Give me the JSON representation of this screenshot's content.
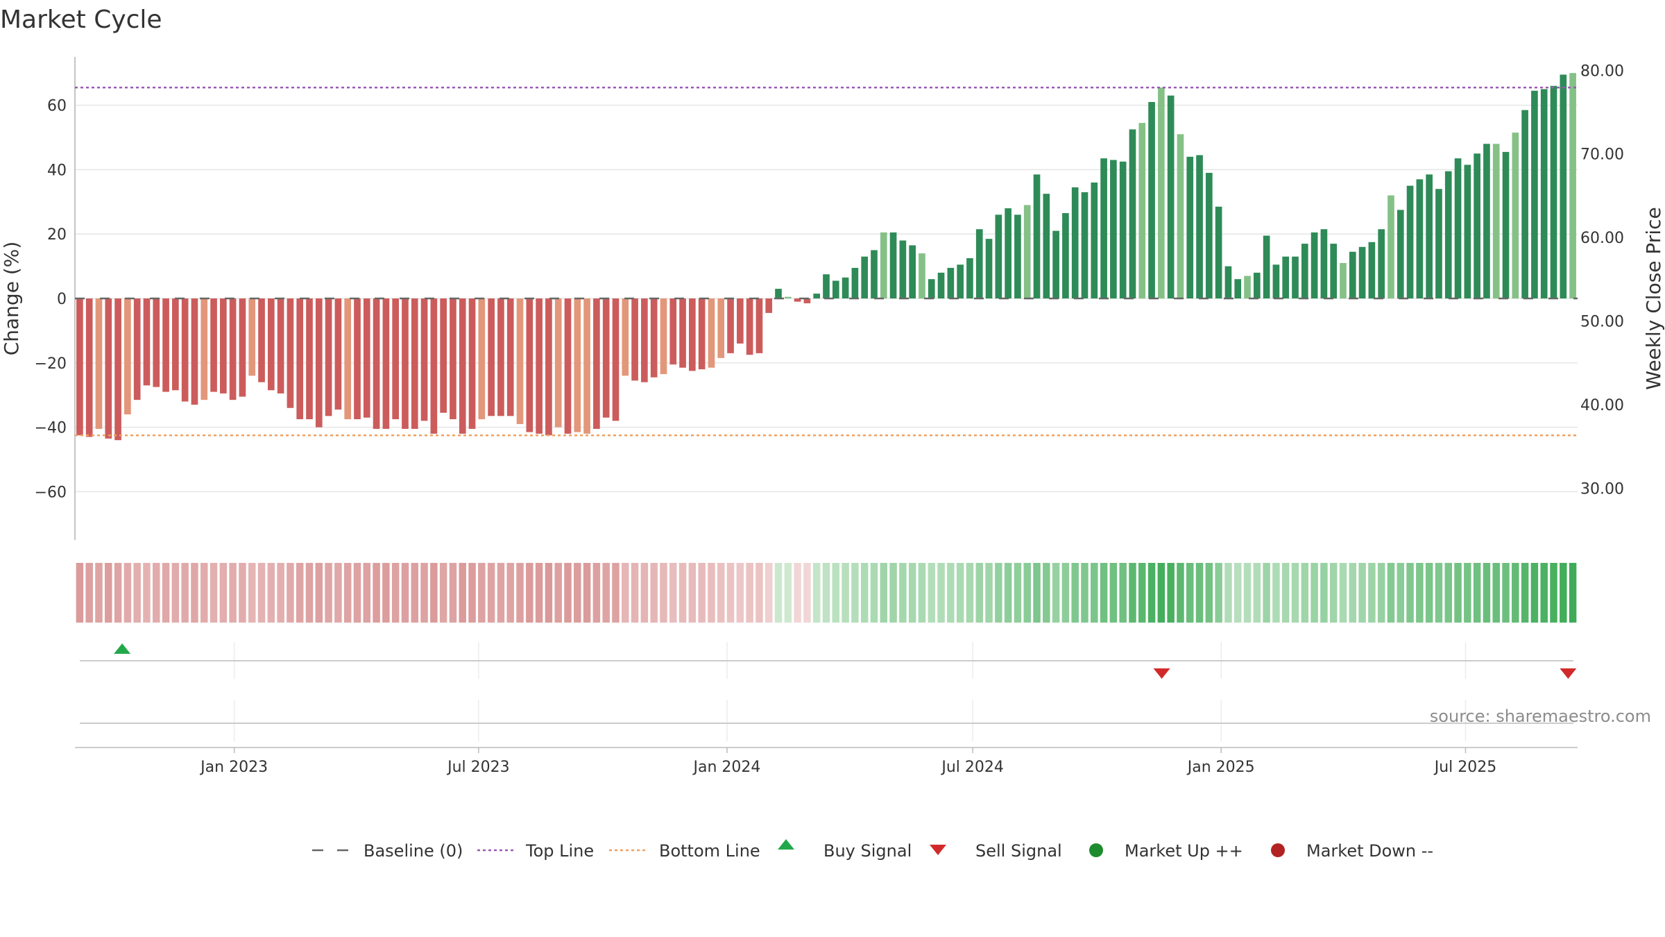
{
  "colors": {
    "green_dark": "#2e8b57",
    "green_light": "#85c187",
    "red_dark": "#cc5c5c",
    "red_light": "#e3977a",
    "top_line": "#9b59b6",
    "bottom_line": "#f0a060",
    "baseline": "#666666",
    "buy": "#22a84a",
    "sell": "#d22a2a",
    "market_up": "#1e8c2e",
    "market_down": "#b22222"
  },
  "chart_data": {
    "type": "bar",
    "title": "Market Cycle",
    "ylabel": "Change (%)",
    "y2label": "Weekly Close Price",
    "ylim": [
      -75,
      75
    ],
    "y_ticks": [
      {
        "v": 60,
        "label": "60"
      },
      {
        "v": 40,
        "label": "40"
      },
      {
        "v": 20,
        "label": "20"
      },
      {
        "v": 0,
        "label": "0"
      },
      {
        "v": -20,
        "label": "−20"
      },
      {
        "v": -40,
        "label": "−40"
      },
      {
        "v": -60,
        "label": "−60"
      }
    ],
    "y2lim": [
      23.8,
      81.6
    ],
    "y2_ticks": [
      "80.00",
      "70.00",
      "60.00",
      "50.00",
      "40.00",
      "30.00"
    ],
    "x_start": "2022-09-05",
    "x_end": "2025-09-22",
    "x_ticks": [
      "Jan 2023",
      "Jul 2023",
      "Jan 2024",
      "Jul 2024",
      "Jan 2025",
      "Jul 2025"
    ],
    "top_line": 65.5,
    "bottom_line": -42.5,
    "values": [
      -42.5,
      -43,
      -40.5,
      -43.5,
      -44,
      -36,
      -31.5,
      -27,
      -27.5,
      -29,
      -28.5,
      -32,
      -33,
      -31.5,
      -29,
      -29.5,
      -31.5,
      -30.5,
      -24,
      -26,
      -28.5,
      -29.5,
      -34,
      -37.5,
      -37.5,
      -40,
      -36.5,
      -34.5,
      -37.5,
      -37.5,
      -37,
      -40.5,
      -40.5,
      -37.5,
      -40.5,
      -40.5,
      -38,
      -42,
      -35.5,
      -37.5,
      -42,
      -40.5,
      -37.5,
      -36.5,
      -36.5,
      -36.5,
      -39,
      -41.5,
      -42,
      -42.5,
      -40,
      -42,
      -41.5,
      -42,
      -40.5,
      -37,
      -38,
      -24,
      -25.5,
      -26,
      -24.5,
      -23.5,
      -20.5,
      -21.5,
      -22.5,
      -22,
      -21.5,
      -18.5,
      -17,
      -14,
      -17.5,
      -17,
      -4.5,
      3,
      0.5,
      -1,
      -1.5,
      1.5,
      7.5,
      5.5,
      6.5,
      9.5,
      13,
      15,
      20.5,
      20.5,
      18,
      16.5,
      14,
      6,
      8,
      9.5,
      10.5,
      12.5,
      21.5,
      18.5,
      26,
      28,
      26,
      29,
      38.5,
      32.5,
      21,
      26.5,
      34.5,
      33,
      36,
      43.5,
      43,
      42.5,
      52.5,
      54.5,
      61,
      65.5,
      63,
      51,
      44,
      44.5,
      39,
      28.5,
      10,
      6,
      7,
      8,
      19.5,
      10.5,
      13,
      13,
      17,
      20.5,
      21.5,
      17,
      11,
      14.5,
      16,
      17.5,
      21.5,
      32,
      27.5,
      35,
      37,
      38.5,
      34,
      39.5,
      43.5,
      41.5,
      45,
      48,
      48,
      45.5,
      51.5,
      58.5,
      64.5,
      65,
      66,
      69.5,
      70
    ],
    "tones": "ddlddldddddddlddddldddddddddldddddddddddddldddldddldlldddldddlddddllddddddldddddddddldddlddddddddddldddddddddddldldlddddddldddddddddlddddlddddddddddldldddddldldddddd",
    "heat_strip": [
      0.66,
      0.62,
      0.58,
      0.64,
      0.58,
      0.52,
      0.48,
      0.44,
      0.5,
      0.54,
      0.5,
      0.52,
      0.55,
      0.5,
      0.46,
      0.48,
      0.5,
      0.5,
      0.42,
      0.44,
      0.46,
      0.48,
      0.52,
      0.58,
      0.6,
      0.62,
      0.56,
      0.54,
      0.58,
      0.6,
      0.6,
      0.64,
      0.64,
      0.6,
      0.62,
      0.62,
      0.6,
      0.66,
      0.56,
      0.6,
      0.66,
      0.64,
      0.6,
      0.58,
      0.58,
      0.58,
      0.62,
      0.66,
      0.66,
      0.68,
      0.62,
      0.66,
      0.64,
      0.66,
      0.62,
      0.58,
      0.6,
      0.4,
      0.42,
      0.42,
      0.4,
      0.38,
      0.34,
      0.36,
      0.36,
      0.36,
      0.34,
      0.3,
      0.28,
      0.24,
      0.28,
      0.28,
      0.16,
      0.12,
      0.1,
      0.1,
      0.1,
      0.16,
      0.2,
      0.22,
      0.24,
      0.26,
      0.3,
      0.32,
      0.38,
      0.38,
      0.36,
      0.34,
      0.32,
      0.26,
      0.28,
      0.3,
      0.32,
      0.34,
      0.4,
      0.38,
      0.46,
      0.5,
      0.48,
      0.52,
      0.6,
      0.56,
      0.44,
      0.5,
      0.58,
      0.58,
      0.62,
      0.68,
      0.68,
      0.68,
      0.8,
      0.82,
      0.9,
      0.95,
      0.92,
      0.8,
      0.72,
      0.72,
      0.66,
      0.52,
      0.28,
      0.24,
      0.26,
      0.28,
      0.4,
      0.3,
      0.34,
      0.34,
      0.38,
      0.42,
      0.44,
      0.38,
      0.32,
      0.36,
      0.38,
      0.4,
      0.44,
      0.56,
      0.52,
      0.58,
      0.6,
      0.62,
      0.58,
      0.62,
      0.66,
      0.64,
      0.68,
      0.72,
      0.72,
      0.7,
      0.76,
      0.84,
      0.9,
      0.9,
      0.92,
      0.96,
      0.98
    ],
    "buy_signals": [
      "2022-10-10"
    ],
    "sell_signals": [
      "2024-11-18",
      "2025-09-15"
    ],
    "source": "source: sharemaestro.com",
    "legend": [
      {
        "label": "Baseline (0)",
        "icon": "dash"
      },
      {
        "label": "Top Line",
        "icon": "dot-purple"
      },
      {
        "label": "Bottom Line",
        "icon": "dot-orange"
      },
      {
        "label": "Buy Signal",
        "icon": "triangle-up"
      },
      {
        "label": "Sell Signal",
        "icon": "triangle-down"
      },
      {
        "label": "Market Up ++",
        "icon": "circle-green"
      },
      {
        "label": "Market Down --",
        "icon": "circle-red"
      }
    ],
    "legend_position": "bottom-center",
    "grid": true
  }
}
